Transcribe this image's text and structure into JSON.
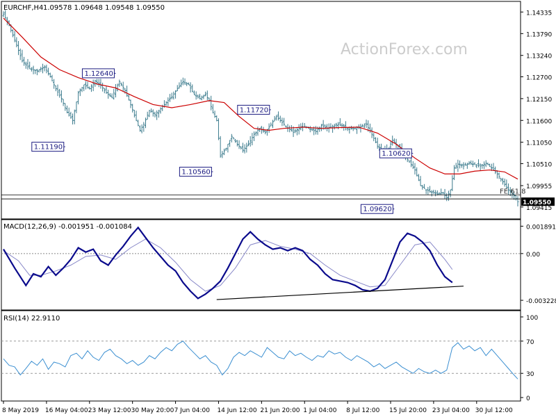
{
  "chart_data": [
    {
      "type": "candlestick",
      "title": "EURCHF,H4",
      "ohlc_header": "1.09578 1.09648 1.09548 1.09550",
      "watermark": "ActionForex.com",
      "ylim": [
        1.0915,
        1.1455
      ],
      "yticks": [
        "1.14335",
        "1.13790",
        "1.13240",
        "1.12700",
        "1.12150",
        "1.11600",
        "1.11050",
        "1.10510",
        "1.09955",
        "1.09415"
      ],
      "last_price": "1.09550",
      "annotations": [
        {
          "label": "1.12640",
          "x": 60,
          "y": 1.1264
        },
        {
          "label": "1.11190",
          "x": 33,
          "y": 1.1119
        },
        {
          "label": "1.10560",
          "x": 112,
          "y": 1.1056
        },
        {
          "label": "1.11720",
          "x": 143,
          "y": 1.1172
        },
        {
          "label": "1.10620",
          "x": 219,
          "y": 1.1062
        },
        {
          "label": "1.09620",
          "x": 209,
          "y": 1.0962
        },
        {
          "label": "FE 61.8",
          "y": 1.0972
        }
      ],
      "moving_average_color": "#cc0000",
      "candle_color": "#3a7a8c"
    },
    {
      "type": "line",
      "title": "MACD(12,26,9) -0.001951 -0.001084",
      "ylim": [
        -0.0038,
        0.0022
      ],
      "yticks": [
        "0.001891",
        "0.00",
        "-0.003228"
      ],
      "trendline": {
        "x": [
          114,
          246
        ],
        "y": [
          -0.00318,
          -0.00225
        ]
      },
      "series": [
        {
          "color": "#0a0a8c",
          "values": []
        },
        {
          "color": "#8888c8",
          "values": []
        }
      ]
    },
    {
      "type": "line",
      "title": "RSI(14) 22.9110",
      "ylim": [
        0,
        100
      ],
      "yticks": [
        "100",
        "70",
        "30",
        "0"
      ],
      "levels": [
        70,
        30
      ],
      "series": [
        {
          "color": "#3b8fd1",
          "values": []
        }
      ]
    }
  ],
  "x_axis_labels": [
    {
      "label": "8 May 2019",
      "x": 0
    },
    {
      "label": "16 May 04:00",
      "x": 23
    },
    {
      "label": "23 May 12:00",
      "x": 46
    },
    {
      "label": "30 May 20:00",
      "x": 69
    },
    {
      "label": "7 Jun 04:00",
      "x": 92
    },
    {
      "label": "14 Jun 12:00",
      "x": 115
    },
    {
      "label": "21 Jun 20:00",
      "x": 138
    },
    {
      "label": "1 Jul 04:00",
      "x": 161
    },
    {
      "label": "8 Jul 12:00",
      "x": 184
    },
    {
      "label": "15 Jul 20:00",
      "x": 207
    },
    {
      "label": "23 Jul 04:00",
      "x": 230
    },
    {
      "label": "30 Jul 12:00",
      "x": 253
    }
  ],
  "price_path": [
    [
      0,
      1.1428
    ],
    [
      3,
      1.14
    ],
    [
      7,
      1.135
    ],
    [
      10,
      1.131
    ],
    [
      14,
      1.129
    ],
    [
      18,
      1.1285
    ],
    [
      22,
      1.1295
    ],
    [
      25,
      1.127
    ],
    [
      28,
      1.124
    ],
    [
      31,
      1.1215
    ],
    [
      34,
      1.118
    ],
    [
      37,
      1.116
    ],
    [
      40,
      1.123
    ],
    [
      43,
      1.125
    ],
    [
      46,
      1.124
    ],
    [
      49,
      1.126
    ],
    [
      52,
      1.1248
    ],
    [
      55,
      1.123
    ],
    [
      58,
      1.1218
    ],
    [
      60,
      1.124
    ],
    [
      62,
      1.1258
    ],
    [
      65,
      1.1235
    ],
    [
      68,
      1.12
    ],
    [
      71,
      1.116
    ],
    [
      73,
      1.1135
    ],
    [
      75,
      1.115
    ],
    [
      78,
      1.1185
    ],
    [
      81,
      1.1175
    ],
    [
      84,
      1.119
    ],
    [
      87,
      1.1205
    ],
    [
      90,
      1.122
    ],
    [
      93,
      1.124
    ],
    [
      96,
      1.1258
    ],
    [
      99,
      1.125
    ],
    [
      102,
      1.1225
    ],
    [
      105,
      1.1215
    ],
    [
      108,
      1.1225
    ],
    [
      110,
      1.121
    ],
    [
      112,
      1.118
    ],
    [
      114,
      1.116
    ],
    [
      116,
      1.107
    ],
    [
      119,
      1.109
    ],
    [
      122,
      1.112
    ],
    [
      125,
      1.11
    ],
    [
      128,
      1.1085
    ],
    [
      131,
      1.11
    ],
    [
      134,
      1.1125
    ],
    [
      137,
      1.114
    ],
    [
      140,
      1.113
    ],
    [
      143,
      1.115
    ],
    [
      146,
      1.117
    ],
    [
      149,
      1.1155
    ],
    [
      152,
      1.114
    ],
    [
      155,
      1.113
    ],
    [
      158,
      1.114
    ],
    [
      161,
      1.1145
    ],
    [
      164,
      1.1138
    ],
    [
      167,
      1.1132
    ],
    [
      170,
      1.1148
    ],
    [
      173,
      1.114
    ],
    [
      176,
      1.1145
    ],
    [
      179,
      1.115
    ],
    [
      182,
      1.1145
    ],
    [
      185,
      1.1138
    ],
    [
      188,
      1.114
    ],
    [
      191,
      1.1145
    ],
    [
      194,
      1.115
    ],
    [
      197,
      1.1125
    ],
    [
      200,
      1.1095
    ],
    [
      203,
      1.1085
    ],
    [
      206,
      1.109
    ],
    [
      208,
      1.111
    ],
    [
      211,
      1.1095
    ],
    [
      214,
      1.1075
    ],
    [
      217,
      1.1055
    ],
    [
      220,
      1.1035
    ],
    [
      223,
      1.0995
    ],
    [
      226,
      1.0985
    ],
    [
      229,
      1.0978
    ],
    [
      232,
      1.0975
    ],
    [
      235,
      1.0978
    ],
    [
      237,
      1.0965
    ],
    [
      239,
      1.0985
    ],
    [
      241,
      1.104
    ],
    [
      243,
      1.105
    ],
    [
      246,
      1.1045
    ],
    [
      249,
      1.1052
    ],
    [
      252,
      1.1048
    ],
    [
      255,
      1.1045
    ],
    [
      258,
      1.1052
    ],
    [
      261,
      1.104
    ],
    [
      264,
      1.1025
    ],
    [
      267,
      1.1005
    ],
    [
      270,
      1.0985
    ],
    [
      273,
      1.097
    ],
    [
      275,
      1.0955
    ]
  ],
  "ma_path": [
    [
      0,
      1.1418
    ],
    [
      10,
      1.137
    ],
    [
      20,
      1.132
    ],
    [
      30,
      1.1288
    ],
    [
      40,
      1.1268
    ],
    [
      50,
      1.1252
    ],
    [
      60,
      1.1242
    ],
    [
      70,
      1.122
    ],
    [
      80,
      1.12
    ],
    [
      90,
      1.1192
    ],
    [
      100,
      1.12
    ],
    [
      110,
      1.121
    ],
    [
      118,
      1.1205
    ],
    [
      126,
      1.117
    ],
    [
      134,
      1.114
    ],
    [
      142,
      1.1135
    ],
    [
      150,
      1.114
    ],
    [
      160,
      1.1143
    ],
    [
      170,
      1.114
    ],
    [
      180,
      1.1142
    ],
    [
      190,
      1.1143
    ],
    [
      200,
      1.1128
    ],
    [
      210,
      1.11
    ],
    [
      220,
      1.1065
    ],
    [
      228,
      1.104
    ],
    [
      236,
      1.1025
    ],
    [
      244,
      1.1025
    ],
    [
      252,
      1.1032
    ],
    [
      260,
      1.1035
    ],
    [
      268,
      1.103
    ],
    [
      275,
      1.1012
    ]
  ],
  "macd_path": [
    [
      0,
      0.0003
    ],
    [
      6,
      -0.001
    ],
    [
      12,
      -0.0022
    ],
    [
      16,
      -0.0014
    ],
    [
      20,
      -0.0016
    ],
    [
      24,
      -0.0009
    ],
    [
      28,
      -0.0015
    ],
    [
      32,
      -0.001
    ],
    [
      36,
      -0.0004
    ],
    [
      40,
      0.0004
    ],
    [
      44,
      0.0001
    ],
    [
      48,
      0.0003
    ],
    [
      52,
      -0.0005
    ],
    [
      56,
      -0.0008
    ],
    [
      60,
      -0.0001
    ],
    [
      64,
      0.0005
    ],
    [
      68,
      0.0012
    ],
    [
      72,
      0.0018
    ],
    [
      76,
      0.0011
    ],
    [
      80,
      0.0004
    ],
    [
      84,
      -0.0002
    ],
    [
      88,
      -0.0008
    ],
    [
      92,
      -0.0012
    ],
    [
      96,
      -0.002
    ],
    [
      100,
      -0.0026
    ],
    [
      104,
      -0.0031
    ],
    [
      108,
      -0.0028
    ],
    [
      112,
      -0.0024
    ],
    [
      116,
      -0.0019
    ],
    [
      120,
      -0.001
    ],
    [
      124,
      0.0
    ],
    [
      128,
      0.001
    ],
    [
      132,
      0.0015
    ],
    [
      136,
      0.001
    ],
    [
      140,
      0.0006
    ],
    [
      144,
      0.0003
    ],
    [
      148,
      0.0004
    ],
    [
      152,
      0.0002
    ],
    [
      156,
      0.0004
    ],
    [
      160,
      0.0002
    ],
    [
      164,
      -0.0004
    ],
    [
      168,
      -0.0008
    ],
    [
      172,
      -0.0014
    ],
    [
      176,
      -0.0018
    ],
    [
      180,
      -0.0019
    ],
    [
      184,
      -0.002
    ],
    [
      188,
      -0.0022
    ],
    [
      192,
      -0.0025
    ],
    [
      196,
      -0.0026
    ],
    [
      200,
      -0.0024
    ],
    [
      204,
      -0.0018
    ],
    [
      208,
      -0.0005
    ],
    [
      212,
      0.0008
    ],
    [
      216,
      0.0014
    ],
    [
      220,
      0.0012
    ],
    [
      224,
      0.0008
    ],
    [
      228,
      0.0002
    ],
    [
      232,
      -0.0008
    ],
    [
      236,
      -0.0016
    ],
    [
      240,
      -0.002
    ]
  ],
  "macd_signal_path": [
    [
      0,
      0.0002
    ],
    [
      8,
      -0.0005
    ],
    [
      14,
      -0.0015
    ],
    [
      20,
      -0.0015
    ],
    [
      28,
      -0.0012
    ],
    [
      36,
      -0.0008
    ],
    [
      44,
      -0.0002
    ],
    [
      52,
      -0.0001
    ],
    [
      60,
      -0.0004
    ],
    [
      68,
      0.0004
    ],
    [
      76,
      0.001
    ],
    [
      84,
      0.0004
    ],
    [
      92,
      -0.0006
    ],
    [
      100,
      -0.0018
    ],
    [
      108,
      -0.0026
    ],
    [
      116,
      -0.0022
    ],
    [
      124,
      -0.001
    ],
    [
      132,
      0.0006
    ],
    [
      140,
      0.0009
    ],
    [
      148,
      0.0005
    ],
    [
      156,
      0.0003
    ],
    [
      164,
      0.0
    ],
    [
      172,
      -0.0008
    ],
    [
      180,
      -0.0015
    ],
    [
      188,
      -0.0019
    ],
    [
      196,
      -0.0023
    ],
    [
      204,
      -0.0022
    ],
    [
      212,
      -0.0008
    ],
    [
      220,
      0.0006
    ],
    [
      228,
      0.0008
    ],
    [
      236,
      -0.0004
    ],
    [
      240,
      -0.0011
    ]
  ],
  "rsi_path": [
    [
      0,
      48
    ],
    [
      3,
      40
    ],
    [
      6,
      38
    ],
    [
      9,
      28
    ],
    [
      12,
      36
    ],
    [
      15,
      45
    ],
    [
      18,
      40
    ],
    [
      21,
      48
    ],
    [
      24,
      35
    ],
    [
      27,
      44
    ],
    [
      30,
      42
    ],
    [
      33,
      38
    ],
    [
      36,
      52
    ],
    [
      39,
      55
    ],
    [
      42,
      48
    ],
    [
      45,
      58
    ],
    [
      48,
      50
    ],
    [
      51,
      46
    ],
    [
      54,
      56
    ],
    [
      57,
      60
    ],
    [
      60,
      52
    ],
    [
      63,
      48
    ],
    [
      66,
      42
    ],
    [
      69,
      46
    ],
    [
      72,
      40
    ],
    [
      75,
      44
    ],
    [
      78,
      52
    ],
    [
      81,
      48
    ],
    [
      84,
      56
    ],
    [
      87,
      62
    ],
    [
      90,
      58
    ],
    [
      93,
      66
    ],
    [
      96,
      70
    ],
    [
      99,
      62
    ],
    [
      102,
      55
    ],
    [
      105,
      48
    ],
    [
      108,
      52
    ],
    [
      111,
      44
    ],
    [
      114,
      40
    ],
    [
      117,
      28
    ],
    [
      120,
      36
    ],
    [
      123,
      50
    ],
    [
      126,
      56
    ],
    [
      129,
      52
    ],
    [
      132,
      58
    ],
    [
      135,
      54
    ],
    [
      138,
      50
    ],
    [
      141,
      62
    ],
    [
      144,
      56
    ],
    [
      147,
      50
    ],
    [
      150,
      48
    ],
    [
      153,
      58
    ],
    [
      156,
      52
    ],
    [
      159,
      55
    ],
    [
      162,
      50
    ],
    [
      165,
      46
    ],
    [
      168,
      52
    ],
    [
      171,
      50
    ],
    [
      174,
      58
    ],
    [
      177,
      54
    ],
    [
      180,
      56
    ],
    [
      183,
      50
    ],
    [
      186,
      46
    ],
    [
      189,
      52
    ],
    [
      192,
      48
    ],
    [
      195,
      44
    ],
    [
      198,
      38
    ],
    [
      201,
      42
    ],
    [
      204,
      36
    ],
    [
      207,
      40
    ],
    [
      210,
      44
    ],
    [
      213,
      38
    ],
    [
      216,
      34
    ],
    [
      219,
      30
    ],
    [
      222,
      36
    ],
    [
      225,
      32
    ],
    [
      228,
      30
    ],
    [
      231,
      34
    ],
    [
      234,
      30
    ],
    [
      237,
      34
    ],
    [
      240,
      62
    ],
    [
      243,
      68
    ],
    [
      246,
      60
    ],
    [
      249,
      64
    ],
    [
      252,
      58
    ],
    [
      255,
      62
    ],
    [
      258,
      52
    ],
    [
      261,
      60
    ],
    [
      264,
      52
    ],
    [
      267,
      44
    ],
    [
      270,
      36
    ],
    [
      273,
      28
    ],
    [
      275,
      23
    ]
  ]
}
